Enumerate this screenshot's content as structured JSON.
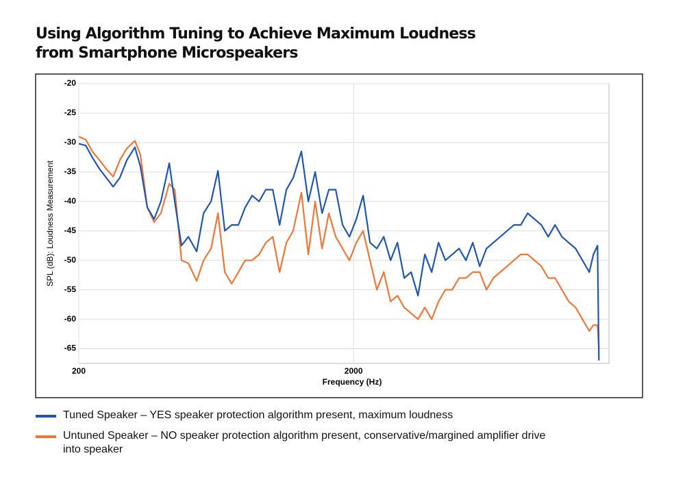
{
  "chart_data": {
    "type": "line",
    "title": [
      "Using Algorithm Tuning to Achieve Maximum Loudness",
      "from Smartphone Microspeakers"
    ],
    "x_label": "Frequency (Hz)",
    "y_label": "SPL (dB): Loudness Measurement",
    "xscale": "log",
    "xlim": [
      200,
      17000
    ],
    "xticks": [
      200,
      2000
    ],
    "ylim": [
      -67.5,
      -20
    ],
    "yticks": [
      -20,
      -25,
      -30,
      -35,
      -40,
      -45,
      -50,
      -55,
      -60,
      -65
    ],
    "grid": true,
    "x": [
      200,
      212,
      224,
      238,
      252,
      267,
      282,
      299,
      320,
      335,
      355,
      376,
      398,
      427,
      447,
      473,
      501,
      537,
      569,
      606,
      642,
      680,
      720,
      762,
      807,
      855,
      906,
      959,
      1016,
      1076,
      1139,
      1206,
      1292,
      1369,
      1450,
      1536,
      1626,
      1722,
      1824,
      1932,
      2047,
      2167,
      2296,
      2431,
      2575,
      2727,
      2888,
      3058,
      3240,
      3431,
      3634,
      3849,
      4076,
      4317,
      4572,
      4842,
      5129,
      5432,
      5754,
      6093,
      6453,
      6835,
      7239,
      7666,
      8120,
      8599,
      9109,
      9647,
      10216,
      10822,
      11460,
      12137,
      12855,
      13614,
      14420,
      14924,
      15448,
      15626
    ],
    "series": [
      {
        "name": "Tuned Speaker – YES speaker protection algorithm present, maximum loudness",
        "color": "#1f57b0",
        "values": [
          -30.2,
          -30.5,
          -32.5,
          -34.5,
          -36,
          -37.5,
          -36,
          -33,
          -30.8,
          -34,
          -41,
          -43,
          -40,
          -33.5,
          -40,
          -47.5,
          -46,
          -48.5,
          -42,
          -40,
          -34.8,
          -45,
          -44,
          -44,
          -41,
          -39,
          -40,
          -38,
          -38,
          -44,
          -38,
          -36,
          -31.5,
          -40,
          -35,
          -42,
          -38,
          -38,
          -44,
          -46,
          -43,
          -39,
          -47,
          -48,
          -46,
          -50,
          -47,
          -53,
          -52,
          -56,
          -49,
          -52,
          -47,
          -50,
          -49,
          -48,
          -50,
          -47,
          -51,
          -48,
          -47,
          -46,
          -45,
          -44,
          -44,
          -42,
          -43,
          -44,
          -46,
          -44,
          -46,
          -47,
          -48,
          -50,
          -52,
          -49,
          -47.5,
          -67
        ]
      },
      {
        "name": "Untuned Speaker – NO speaker protection algorithm present, conservative/margined amplifier drive into speaker",
        "color": "#f07634",
        "values": [
          -29,
          -29.5,
          -31.5,
          -33,
          -34.5,
          -35.8,
          -33,
          -31,
          -29.7,
          -32,
          -41,
          -43.5,
          -42,
          -37,
          -38,
          -50,
          -50.5,
          -53.5,
          -50,
          -48,
          -42,
          -52,
          -54,
          -52,
          -50,
          -50,
          -49,
          -47,
          -46,
          -52,
          -47,
          -45,
          -38.5,
          -49,
          -40,
          -48,
          -42,
          -46,
          -48,
          -50,
          -47,
          -45,
          -50,
          -55,
          -52,
          -57,
          -56,
          -58,
          -59,
          -60,
          -58,
          -60,
          -57,
          -55,
          -55,
          -53,
          -53,
          -52,
          -52,
          -55,
          -53,
          -52,
          -51,
          -50,
          -49,
          -49,
          -50,
          -51,
          -53,
          -53,
          -55,
          -57,
          -58,
          -60,
          -62,
          -61,
          -61,
          -65
        ]
      }
    ]
  }
}
